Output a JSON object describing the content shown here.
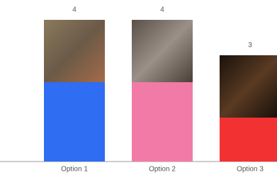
{
  "chart_data": {
    "type": "bar",
    "categories": [
      "Option 1",
      "Option 2",
      "Option 3"
    ],
    "values": [
      4,
      4,
      3
    ],
    "colors": [
      "#2f6df2",
      "#f27aa6",
      "#f23232"
    ]
  }
}
